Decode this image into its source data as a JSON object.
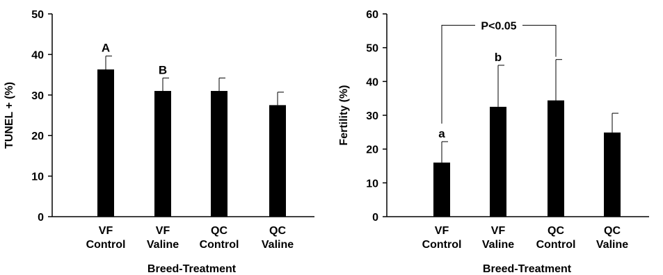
{
  "chart_data": [
    {
      "type": "bar",
      "categories": [
        [
          "VF",
          "Control"
        ],
        [
          "VF",
          "Valine"
        ],
        [
          "QC",
          "Control"
        ],
        [
          "QC",
          "Valine"
        ]
      ],
      "values": [
        36.3,
        31.0,
        31.0,
        27.5
      ],
      "errors": [
        3.3,
        3.2,
        3.2,
        3.2
      ],
      "significance_labels": [
        "A",
        "B",
        "",
        ""
      ],
      "ylabel": "TUNEL + (%)",
      "xlabel": "Breed-Treatment",
      "ylim": [
        0,
        50
      ],
      "yticks": [
        0,
        10,
        20,
        30,
        40,
        50
      ],
      "bar_color": "#000000",
      "grid": false,
      "legend": "none"
    },
    {
      "type": "bar",
      "categories": [
        [
          "VF",
          "Control"
        ],
        [
          "VF",
          "Valine"
        ],
        [
          "QC",
          "Control"
        ],
        [
          "QC",
          "Valine"
        ]
      ],
      "values": [
        16.0,
        32.5,
        34.4,
        24.9
      ],
      "errors": [
        6.2,
        12.3,
        12.1,
        5.7
      ],
      "significance_labels": [
        "a",
        "b",
        "",
        ""
      ],
      "ylabel": "Fertility (%)",
      "xlabel": "Breed-Treatment",
      "ylim": [
        0,
        60
      ],
      "yticks": [
        0,
        10,
        20,
        30,
        40,
        50,
        60
      ],
      "bracket": {
        "from_index": 0,
        "to_index": 2,
        "y": 55,
        "label": "P<0.05"
      },
      "bar_color": "#000000",
      "grid": false,
      "legend": "none"
    }
  ]
}
